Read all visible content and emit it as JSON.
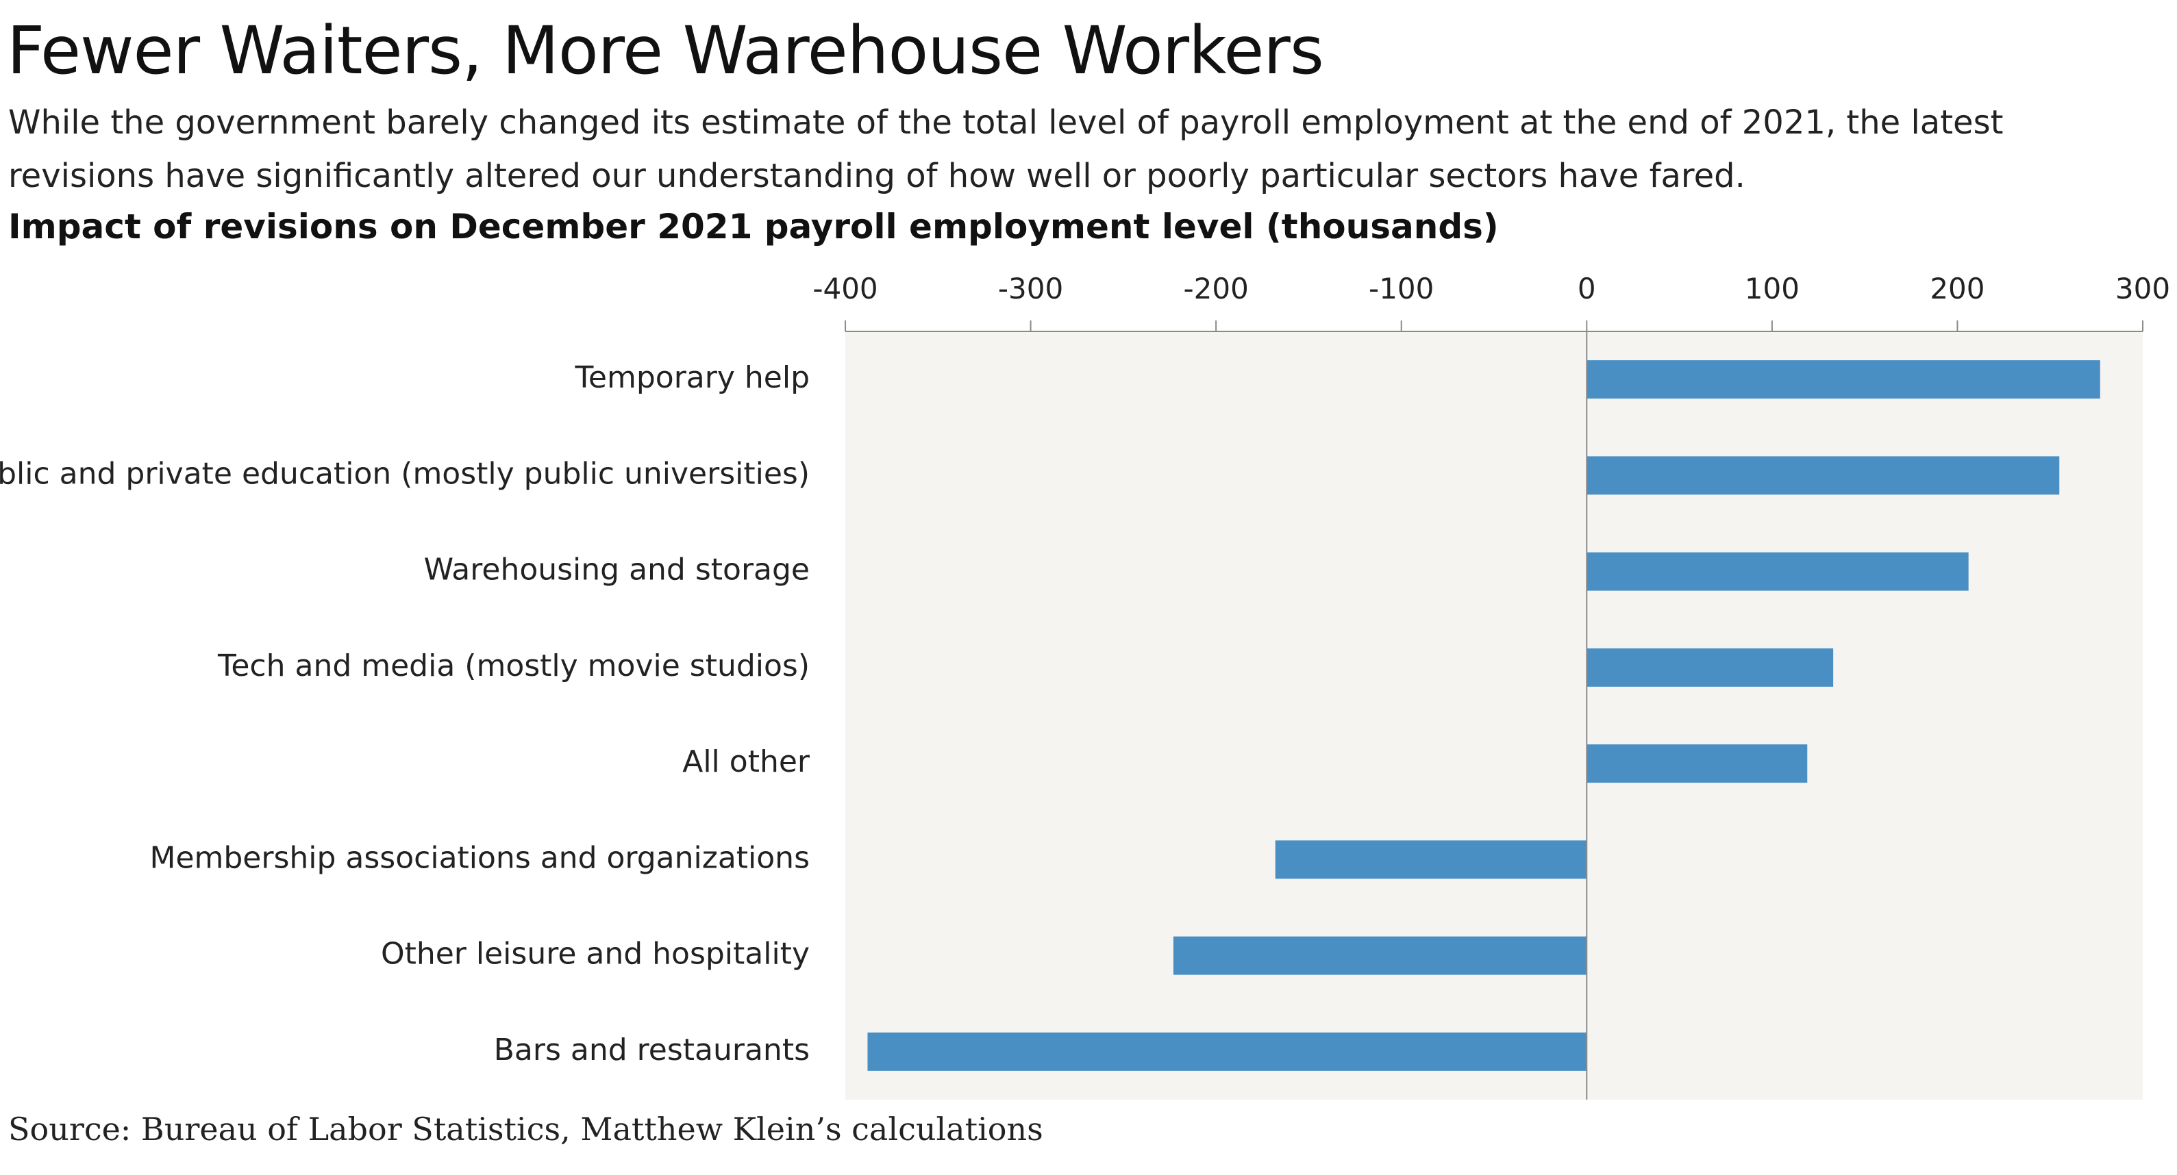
{
  "header": {
    "title": "Fewer Waiters, More Warehouse Workers",
    "subtitle": "While the government barely changed its estimate of the total level of payroll employment at the end of 2021, the latest revisions have significantly altered our understanding of how well or poorly particular sectors have fared."
  },
  "footer": {
    "source": "Source: Bureau of Labor Statistics, Matthew Klein’s calculations"
  },
  "chart_data": {
    "type": "bar",
    "orientation": "horizontal",
    "title": "Impact of revisions on December 2021 payroll employment level (thousands)",
    "categories": [
      "Temporary help",
      "Public and private education (mostly public universities)",
      "Warehousing and storage",
      "Tech and media (mostly movie studios)",
      "All other",
      "Membership associations and organizations",
      "Other leisure and hospitality",
      "Bars and restaurants"
    ],
    "values": [
      277,
      255,
      206,
      133,
      119,
      -168,
      -223,
      -388
    ],
    "xlim": [
      -400,
      300
    ],
    "xticks": [
      -400,
      -300,
      -200,
      -100,
      0,
      100,
      200,
      300
    ],
    "axis_position": "top",
    "grid": false,
    "colors": {
      "bar": "#4a8fc4",
      "plot_background": "#f5f4f1",
      "axis": "#8a8a8a"
    }
  }
}
